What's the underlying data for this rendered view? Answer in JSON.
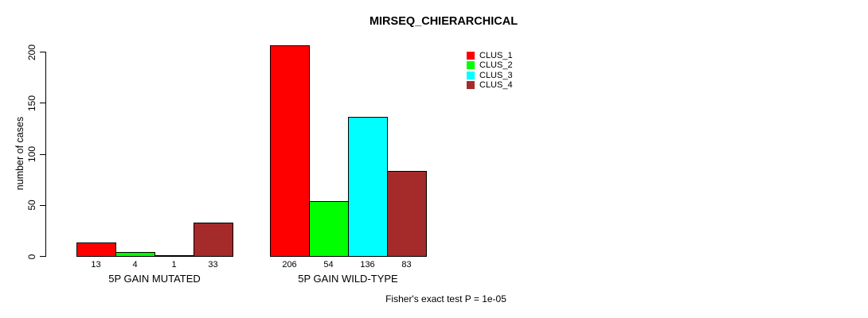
{
  "chart_data": {
    "type": "bar",
    "title": "MIRSEQ_CHIERARCHICAL",
    "ylabel": "number of cases",
    "xlabel": "",
    "categories": [
      "5P GAIN MUTATED",
      "5P GAIN WILD-TYPE"
    ],
    "series": [
      {
        "name": "CLUS_1",
        "color": "#FF0000",
        "values": [
          13,
          206
        ]
      },
      {
        "name": "CLUS_2",
        "color": "#00FF00",
        "values": [
          4,
          54
        ]
      },
      {
        "name": "CLUS_3",
        "color": "#00FFFF",
        "values": [
          1,
          136
        ]
      },
      {
        "name": "CLUS_4",
        "color": "#A52A2A",
        "values": [
          33,
          83
        ]
      }
    ],
    "bar_value_labels": [
      [
        "13",
        "4",
        "1",
        "33"
      ],
      [
        "206",
        "54",
        "136",
        "83"
      ]
    ],
    "yticks": [
      "0",
      "50",
      "100",
      "150",
      "200"
    ],
    "ylim": [
      0,
      200
    ],
    "grid": false,
    "legend_position": "top-right",
    "annotation": "Fisher's exact test P = 1e-05"
  }
}
